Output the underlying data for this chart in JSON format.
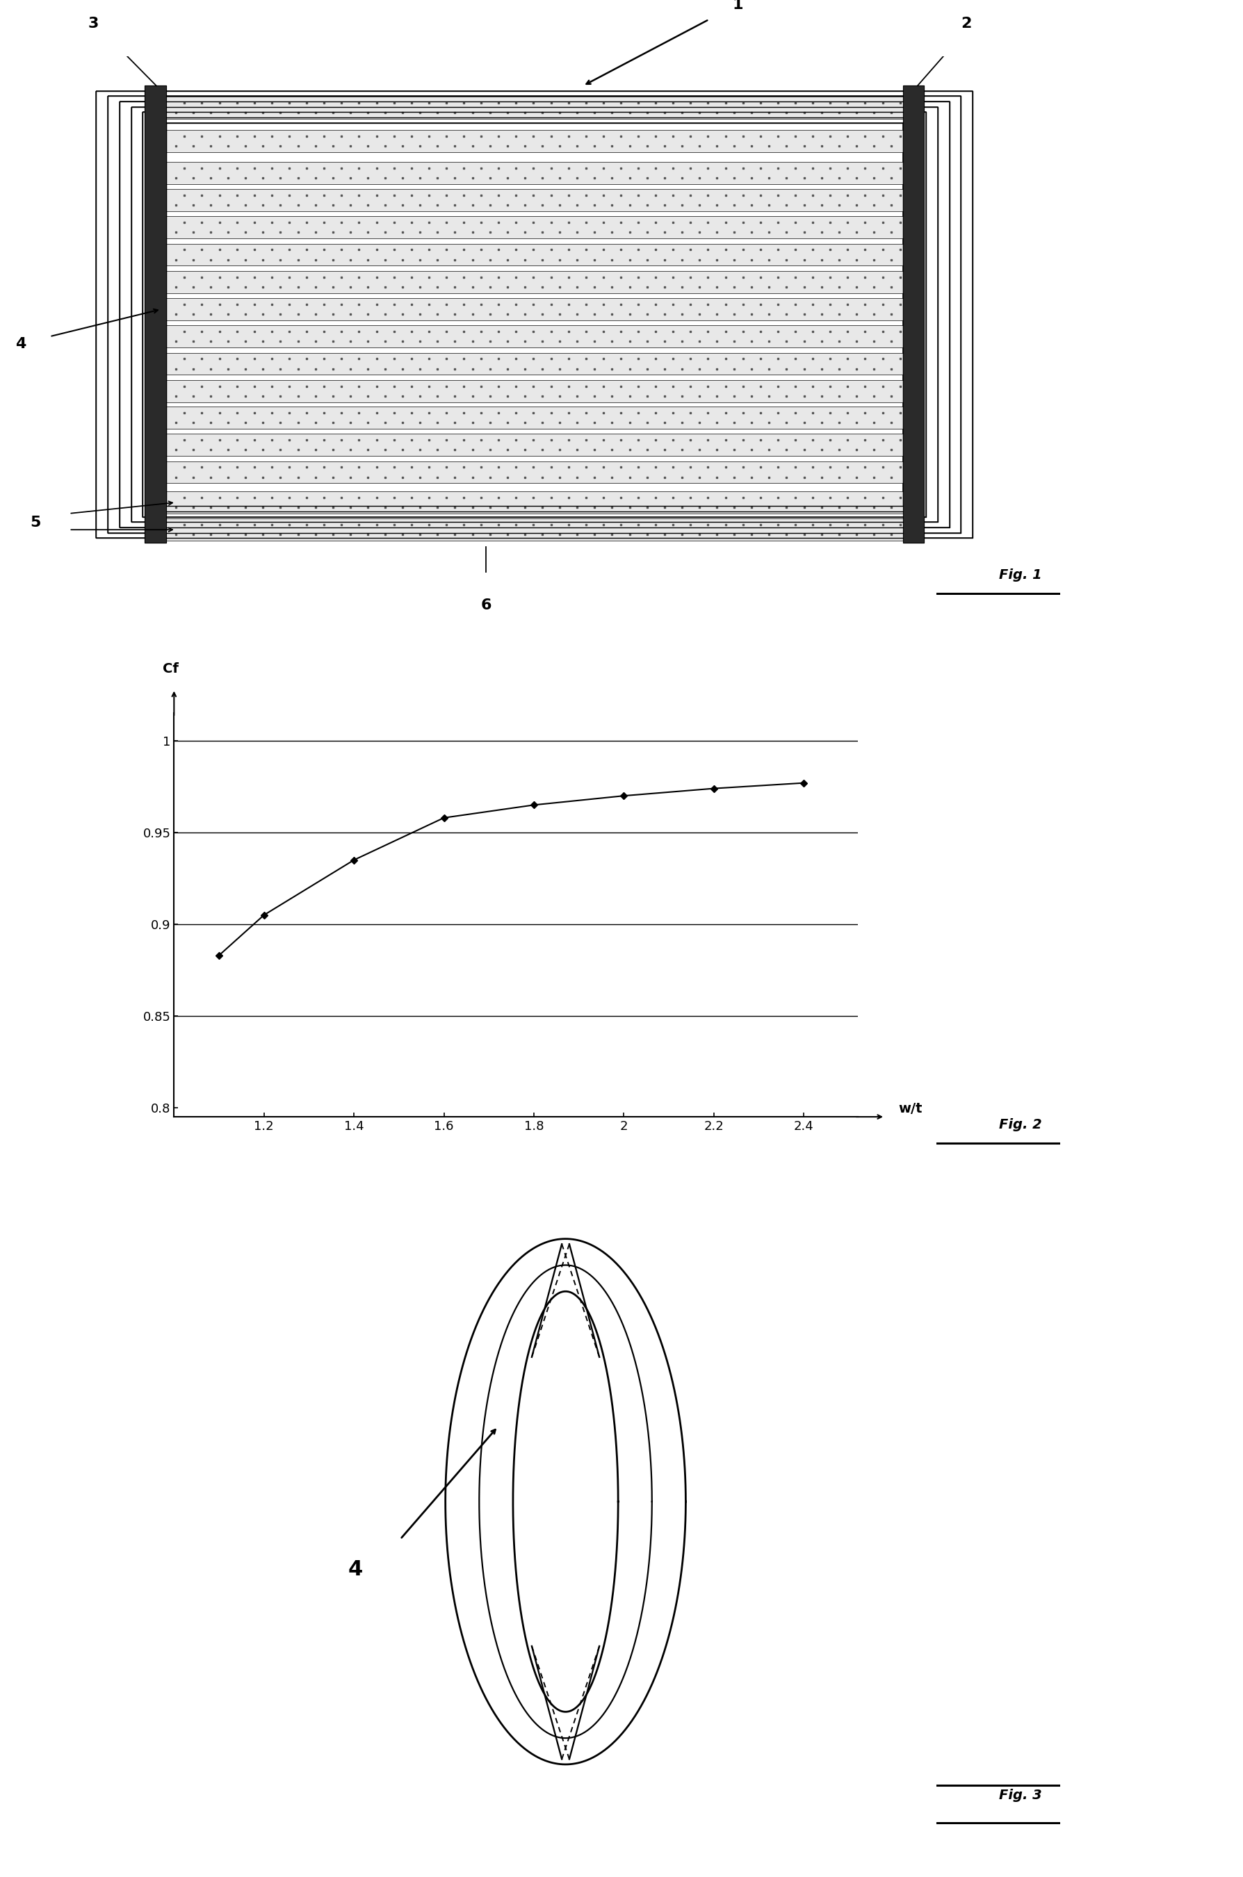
{
  "fig_width": 17.88,
  "fig_height": 27.01,
  "bg_color": "#ffffff",
  "fig2": {
    "x_data": [
      1.1,
      1.2,
      1.4,
      1.6,
      1.8,
      2.0,
      2.2,
      2.4
    ],
    "y_data": [
      0.883,
      0.905,
      0.935,
      0.958,
      0.965,
      0.97,
      0.974,
      0.977
    ],
    "x_ticks": [
      1.2,
      1.4,
      1.6,
      1.8,
      2.0,
      2.2,
      2.4
    ],
    "x_tick_labels": [
      "1.2",
      "1.4",
      "1.6",
      "1.8",
      "2",
      "2.2",
      "2.4"
    ],
    "y_ticks": [
      0.8,
      0.85,
      0.9,
      0.95,
      1.0
    ],
    "y_tick_labels": [
      "0.8",
      "0.85",
      "0.9",
      "0.95",
      "1"
    ],
    "y_hlines": [
      0.85,
      0.9,
      0.95,
      1.0
    ],
    "xlim": [
      1.0,
      2.52
    ],
    "ylim": [
      0.795,
      1.015
    ],
    "x_label": "w/t",
    "y_label": "Cf"
  }
}
